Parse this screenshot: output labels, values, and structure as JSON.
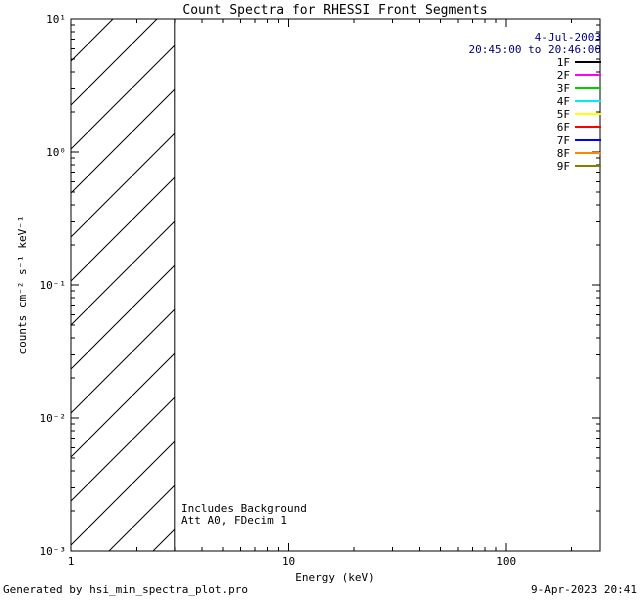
{
  "title": "Count Spectra for RHESSI Front Segments",
  "header": {
    "date": "4-Jul-2003",
    "time_range": "20:45:00 to 20:46:00"
  },
  "legend": {
    "items": [
      {
        "label": "1F",
        "color": "#000000"
      },
      {
        "label": "2F",
        "color": "#ff00ff"
      },
      {
        "label": "3F",
        "color": "#00cc00"
      },
      {
        "label": "4F",
        "color": "#00eeee"
      },
      {
        "label": "5F",
        "color": "#ffff00"
      },
      {
        "label": "6F",
        "color": "#ff0000"
      },
      {
        "label": "7F",
        "color": "#0000ff"
      },
      {
        "label": "8F",
        "color": "#ff8800"
      },
      {
        "label": "9F",
        "color": "#808000"
      }
    ]
  },
  "annotations": {
    "line1": "Includes Background",
    "line2": "Att A0, FDecim 1"
  },
  "footer": {
    "left": "Generated by hsi_min_spectra_plot.pro",
    "right": "9-Apr-2023 20:41"
  },
  "chart_data": {
    "type": "line",
    "title": "Count Spectra for RHESSI Front Segments",
    "xlabel": "Energy (keV)",
    "ylabel": "counts cm⁻² s⁻¹ keV⁻¹",
    "x_scale": "log",
    "y_scale": "log",
    "xlim": [
      1,
      270
    ],
    "ylim": [
      0.001,
      10
    ],
    "grid": false,
    "legend_position": "top-right-inside",
    "x_ticks": [
      {
        "value": 1,
        "label": "1"
      },
      {
        "value": 10,
        "label": "10"
      },
      {
        "value": 100,
        "label": "100"
      }
    ],
    "y_ticks": [
      {
        "value": 10,
        "label": "10¹"
      },
      {
        "value": 1,
        "label": "10⁰"
      },
      {
        "value": 0.1,
        "label": "10⁻¹"
      },
      {
        "value": 0.01,
        "label": "10⁻²"
      },
      {
        "value": 0.001,
        "label": "10⁻³"
      }
    ],
    "hatched_region": {
      "x_min": 1,
      "x_max": 3,
      "style": "diagonal-hatch",
      "note": "hatched exclusion band below 3 keV; no spectra curves plotted"
    },
    "series": [
      {
        "name": "1F",
        "color": "#000000",
        "values": []
      },
      {
        "name": "2F",
        "color": "#ff00ff",
        "values": []
      },
      {
        "name": "3F",
        "color": "#00cc00",
        "values": []
      },
      {
        "name": "4F",
        "color": "#00eeee",
        "values": []
      },
      {
        "name": "5F",
        "color": "#ffff00",
        "values": []
      },
      {
        "name": "6F",
        "color": "#ff0000",
        "values": []
      },
      {
        "name": "7F",
        "color": "#0000ff",
        "values": []
      },
      {
        "name": "8F",
        "color": "#ff8800",
        "values": []
      },
      {
        "name": "9F",
        "color": "#808000",
        "values": []
      }
    ]
  }
}
